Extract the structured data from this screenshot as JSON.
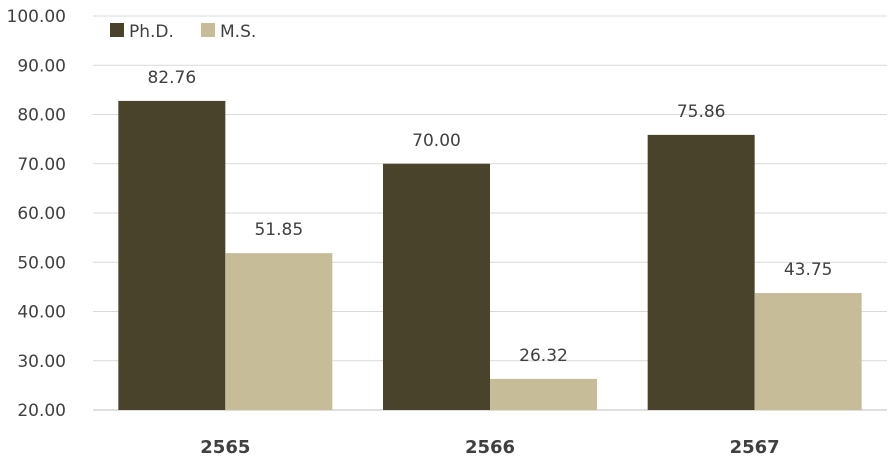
{
  "chart_data": {
    "type": "bar",
    "categories": [
      "2565",
      "2566",
      "2567"
    ],
    "series": [
      {
        "name": "Ph.D.",
        "color": "#4a432b",
        "values": [
          82.76,
          70.0,
          75.86
        ]
      },
      {
        "name": "M.S.",
        "color": "#c6bd98",
        "values": [
          51.85,
          26.32,
          43.75
        ]
      }
    ],
    "ylim": [
      20,
      100
    ],
    "yticks": [
      "20.00",
      "30.00",
      "40.00",
      "50.00",
      "60.00",
      "70.00",
      "80.00",
      "90.00",
      "100.00"
    ],
    "grid": true,
    "legend_position": "top-left",
    "title": "",
    "xlabel": "",
    "ylabel": ""
  }
}
